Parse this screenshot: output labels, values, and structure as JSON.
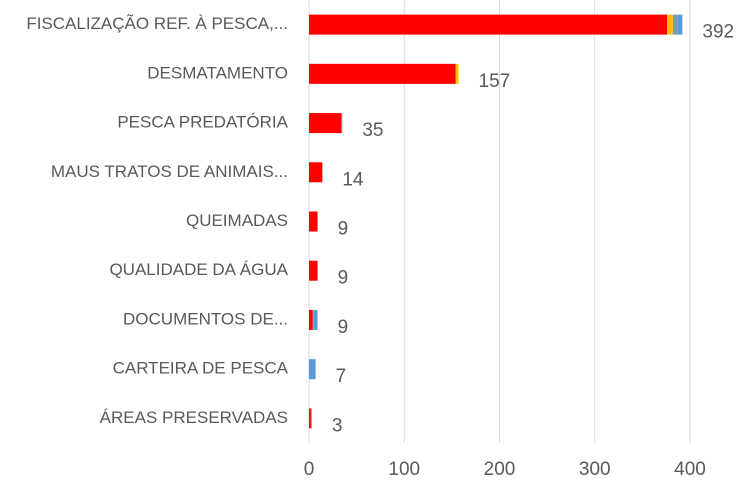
{
  "chart_data": {
    "type": "stacked-bar-horizontal",
    "categories": [
      "FISCALIZAÇÃO REF. À PESCA,...",
      "DESMATAMENTO",
      "PESCA PREDATÓRIA",
      "MAUS TRATOS DE ANIMAIS...",
      "QUEIMADAS",
      "QUALIDADE DA ÁGUA",
      "DOCUMENTOS DE...",
      "CARTEIRA DE PESCA",
      "ÁREAS PRESERVADAS"
    ],
    "series": [
      {
        "color": "#ff0000",
        "values": [
          376,
          154,
          34,
          14,
          9,
          9,
          4,
          0,
          2
        ]
      },
      {
        "color": "#ffc000",
        "values": [
          6,
          3,
          0,
          0,
          0,
          0,
          0,
          0,
          0
        ]
      },
      {
        "color": "#8497b0",
        "values": [
          5,
          0,
          1,
          0,
          0,
          0,
          1,
          0,
          1
        ]
      },
      {
        "color": "#5b9bd5",
        "values": [
          5,
          0,
          0,
          0,
          0,
          0,
          4,
          7,
          0
        ]
      }
    ],
    "totals": [
      392,
      157,
      35,
      14,
      9,
      9,
      9,
      7,
      3
    ],
    "xlim": [
      0,
      400
    ],
    "xticks": [
      0,
      100,
      200,
      300,
      400
    ],
    "grid": true
  }
}
